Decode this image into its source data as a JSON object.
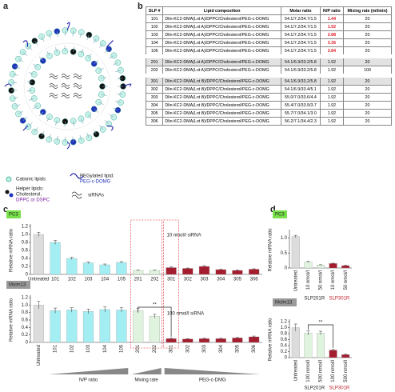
{
  "panel_labels": [
    "a",
    "b",
    "c",
    "d"
  ],
  "legend_a": {
    "cationic": "Cationic lipids",
    "peg_title": "PEGylated lipid:",
    "peg_name": "PEG-c-DOMG",
    "helper_title": "Helper lipids:",
    "helper_1": "Cholesterol,",
    "helper_2": "DPPC or DSPC",
    "sirna": "siRNAs"
  },
  "table": {
    "header": [
      "SLP #",
      "Lipid composition",
      "Molar ratio",
      "N/P ratio",
      "Mixing rate (ml/min)"
    ],
    "rows": [
      [
        "101",
        "Dlin-KC2-DMA(Lot A)/DPPC/Cholesterol/PEG-c-DOMG",
        "54.1/7.2/34.7/1.5",
        "1.44",
        "20"
      ],
      [
        "102",
        "Dlin-KC2-DMA(Lot A)/DPPC/Cholesterol/PEG-c-DOMG",
        "54.1/7.2/34.7/1.5",
        "1.92",
        "20"
      ],
      [
        "103",
        "Dlin-KC2-DMA(Lot A)/DPPC/Cholesterol/PEG-c-DOMG",
        "54.1/7.2/34.7/1.5",
        "2.88",
        "20"
      ],
      [
        "104",
        "Dlin-KC2-DMA(Lot A)/DPPC/Cholesterol/PEG-c-DOMG",
        "54.1/7.2/34.7/1.5",
        "3.36",
        "20"
      ],
      [
        "105",
        "Dlin-KC2-DMA(Lot A)/DPPC/Cholesterol/PEG-c-DOMG",
        "54.1/7.2/34.7/1.5",
        "3.84",
        "20"
      ],
      [
        "201",
        "Dlin-KC2-DMA(Lot A)/DPPC/Cholesterol/PEG-c-DOMG",
        "54.1/6.9/33.2/5.8",
        "1.92",
        "20"
      ],
      [
        "202",
        "Dlin-KC2-DMA(Lot A)/DPPC/Cholesterol/PEG-c-DOMG",
        "54.1/6.9/33.2/5.8",
        "1.92",
        "100"
      ],
      [
        "301",
        "Dlin-KC2-DMA(Lot B)/DPPC/Cholesterol/PEG-c-DOMG",
        "54.1/6.9/33.2/5.8",
        "1.92",
        "20"
      ],
      [
        "302",
        "Dlin-KC2-DMA(Lot B)/DPPC/Cholesterol/PEG-c-DOMG",
        "54.1/6.9/33.4/5.1",
        "1.92",
        "20"
      ],
      [
        "303",
        "Dlin-KC2-DMA(Lot B)/DPPC/Cholesterol/PEG-c-DOMG",
        "55.0/7.0/33.6/4.4",
        "1.92",
        "20"
      ],
      [
        "304",
        "Dlin-KC2-DMA(Lot B)/DPPC/Cholesterol/PEG-c-DOMG",
        "55.4/7.0/33.9/3.7",
        "1.92",
        "20"
      ],
      [
        "305",
        "Dlin-KC2-DMA(Lot B)/DPPC/Cholesterol/PEG-c-DOMG",
        "55.7/7.0/34.1/3.0",
        "1.92",
        "20"
      ],
      [
        "306",
        "Dlin-KC2-DMA(Lot B)/DPPC/Cholesterol/PEG-c-DOMG",
        "56.2/7.1/34.4/2.3",
        "1.92",
        "20"
      ]
    ]
  },
  "chart_data": [
    {
      "type": "bar",
      "title": "PC3",
      "ylabel": "Relative mRNA ratio",
      "annotation": "10 nmol/l siRNA",
      "categories": [
        "Untreated",
        "101",
        "102",
        "103",
        "104",
        "105",
        "201",
        "202",
        "301",
        "302",
        "303",
        "304",
        "305",
        "306"
      ],
      "values": [
        1.0,
        0.8,
        0.4,
        0.29,
        0.24,
        0.3,
        0.1,
        0.1,
        0.17,
        0.15,
        0.2,
        0.12,
        0.1,
        0.13
      ],
      "errors": [
        0.05,
        0.05,
        0.03,
        0.02,
        0.02,
        0.02,
        0.01,
        0.01,
        0.02,
        0.01,
        0.02,
        0.01,
        0.01,
        0.01
      ],
      "colors": [
        "#dcdcdc",
        "#a3eef2",
        "#a3eef2",
        "#a3eef2",
        "#a3eef2",
        "#a3eef2",
        "#dff3de",
        "#dff3de",
        "#a31d2f",
        "#a31d2f",
        "#a31d2f",
        "#a31d2f",
        "#a31d2f",
        "#a31d2f"
      ],
      "ylim": [
        0,
        1.2
      ],
      "yticks": [
        0,
        0.2,
        0.4,
        0.6,
        0.8,
        {
          "value": 1.0,
          "label": "1.0"
        },
        1.2
      ]
    },
    {
      "type": "bar",
      "title": "Molm13",
      "ylabel": "Relative mRNA ratio",
      "annotation": "100 nmol/l siRNA",
      "significance": "**",
      "categories": [
        "Untreated",
        "101",
        "102",
        "103",
        "104",
        "105",
        "201",
        "202",
        "301",
        "302",
        "303",
        "304",
        "305",
        "306"
      ],
      "values": [
        1.0,
        0.85,
        0.87,
        0.83,
        0.88,
        0.87,
        0.85,
        0.7,
        0.1,
        0.09,
        0.1,
        0.1,
        0.12,
        0.15
      ],
      "errors": [
        0.1,
        0.07,
        0.06,
        0.06,
        0.07,
        0.06,
        0.06,
        0.05,
        0.01,
        0.01,
        0.01,
        0.01,
        0.01,
        0.02
      ],
      "colors": [
        "#dcdcdc",
        "#a3eef2",
        "#a3eef2",
        "#a3eef2",
        "#a3eef2",
        "#a3eef2",
        "#dff3de",
        "#dff3de",
        "#a31d2f",
        "#a31d2f",
        "#a31d2f",
        "#a31d2f",
        "#a31d2f",
        "#a31d2f"
      ],
      "ylim": [
        0,
        1.2
      ],
      "yticks": [
        0,
        0.2,
        0.4,
        0.6,
        0.8,
        {
          "value": 1.0,
          "label": "1.0"
        },
        1.2
      ],
      "group_labels": [
        "N/P ratio",
        "Mixing rate",
        "PEG-c-DMG"
      ]
    },
    {
      "type": "bar",
      "title": "PC3",
      "ylabel": "Relative mRNA ratio",
      "categories": [
        "Untreated",
        "10 nmol/l",
        "50 nmol/l",
        "10 nmol/l",
        "50 nmol/l"
      ],
      "values": [
        1.05,
        0.2,
        0.1,
        0.15,
        0.08
      ],
      "errors": [
        0.04,
        0.02,
        0.01,
        0.01,
        0.01
      ],
      "colors": [
        "#dcdcdc",
        "#dff3de",
        "#dff3de",
        "#a31d2f",
        "#a31d2f"
      ],
      "ylim": [
        0,
        1.2
      ],
      "yticks": [
        0,
        0.5,
        {
          "value": 1.0,
          "label": "1.0"
        }
      ],
      "group_labels": [
        "SLP201R",
        "SLP301R"
      ]
    },
    {
      "type": "bar",
      "title": "Molm13",
      "ylabel": "Relative mRNA ratio",
      "significance": "**",
      "categories": [
        "Untreated",
        "100 nmol/l",
        "500 nmol/l",
        "100 nmol/l",
        "500 nmol/l"
      ],
      "values": [
        1.0,
        0.82,
        0.82,
        0.25,
        0.1
      ],
      "errors": [
        0.12,
        0.07,
        0.06,
        0.02,
        0.01
      ],
      "colors": [
        "#dcdcdc",
        "#dff3de",
        "#dff3de",
        "#a31d2f",
        "#a31d2f"
      ],
      "ylim": [
        0,
        1.2
      ],
      "yticks": [
        0,
        0.2,
        0.4,
        0.6,
        0.8,
        {
          "value": 1.0,
          "label": "1.0"
        },
        1.2
      ],
      "group_labels": [
        "SLP201R",
        "SLP301R"
      ]
    }
  ]
}
